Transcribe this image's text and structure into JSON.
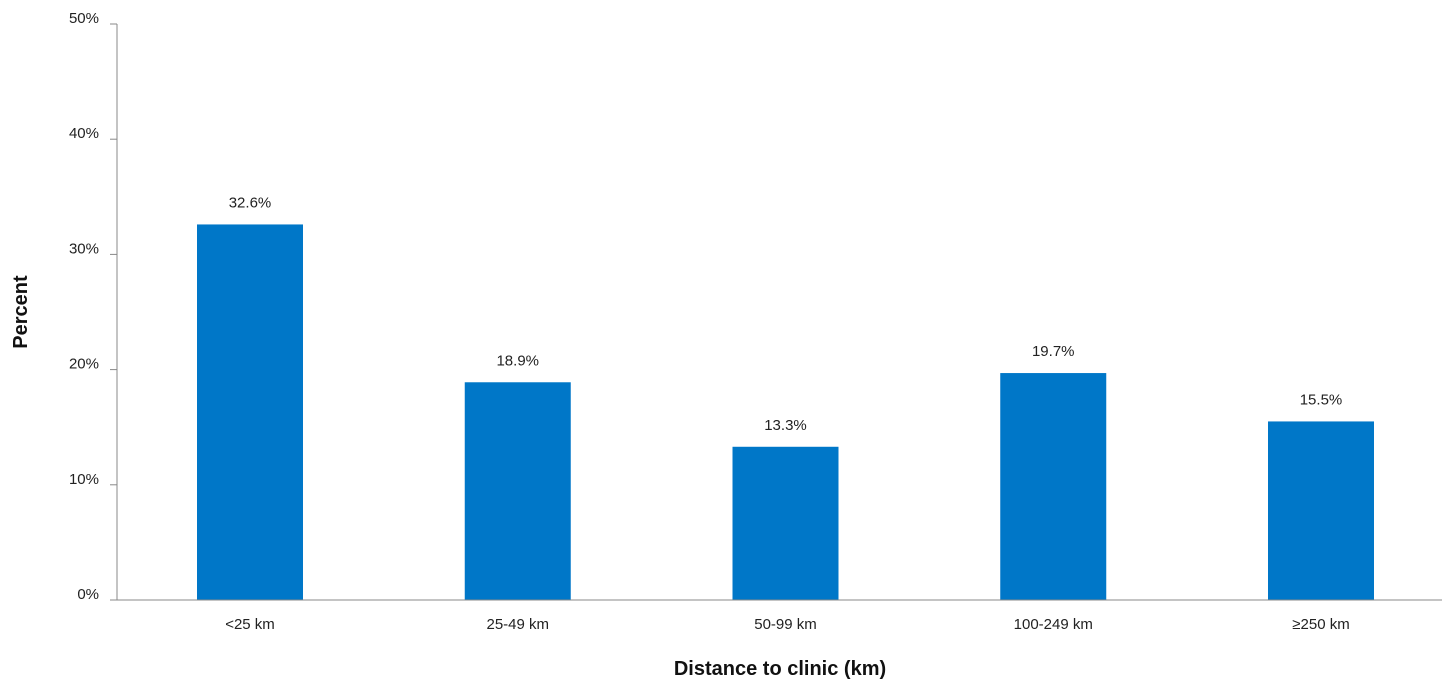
{
  "chart_data": {
    "type": "bar",
    "title": "",
    "xlabel": "Distance to clinic (km)",
    "ylabel": "Percent",
    "categories": [
      "<25 km",
      "25-49 km",
      "50-99 km",
      "100-249 km",
      "≥250 km"
    ],
    "values": [
      32.6,
      18.9,
      13.3,
      19.7,
      15.5
    ],
    "data_labels": [
      "32.6%",
      "18.9%",
      "13.3%",
      "19.7%",
      "15.5%"
    ],
    "ylim": [
      0,
      50
    ],
    "yticks": [
      0,
      10,
      20,
      30,
      40,
      50
    ],
    "ytick_labels": [
      "0%",
      "10%",
      "20%",
      "30%",
      "40%",
      "50%"
    ],
    "grid": false,
    "legend": "none",
    "bar_color": "#0077c8",
    "axis_color": "#888888"
  }
}
